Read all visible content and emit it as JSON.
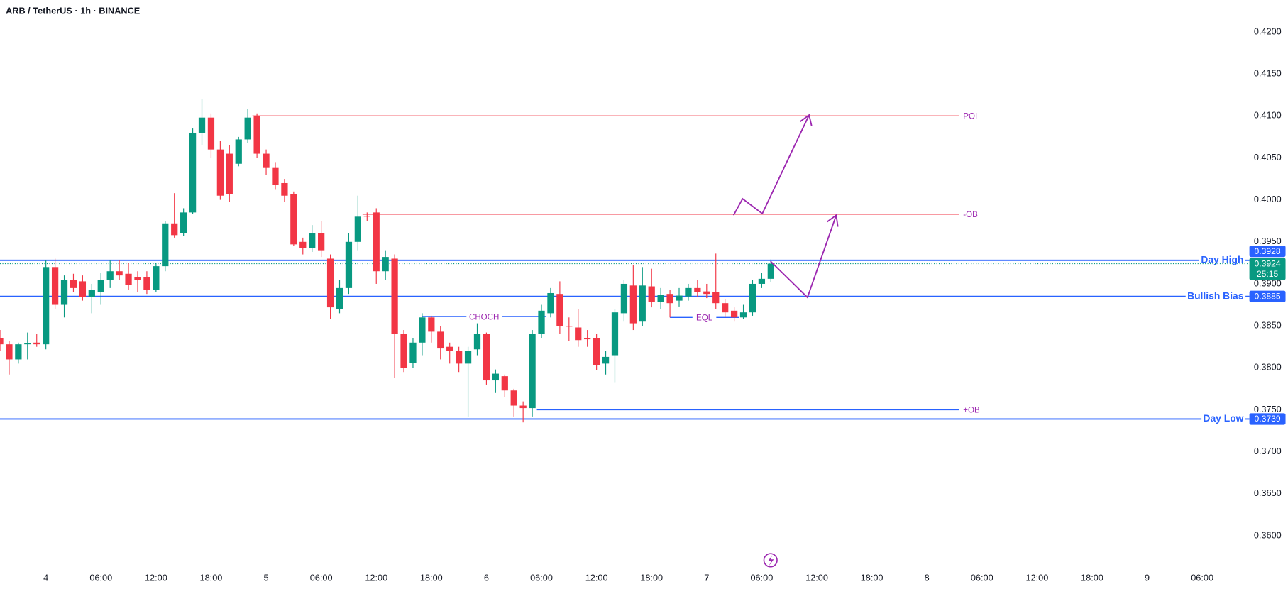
{
  "chart_data": {
    "type": "candlestick",
    "title": "ARB / TetherUS · 1h · BINANCE",
    "x": [
      -5,
      -4,
      -3,
      -2,
      -1,
      0,
      1,
      2,
      3,
      4,
      5,
      6,
      7,
      8,
      9,
      10,
      11,
      12,
      13,
      14,
      15,
      16,
      17,
      18,
      19,
      20,
      21,
      22,
      23,
      24,
      25,
      26,
      27,
      28,
      29,
      30,
      31,
      32,
      33,
      34,
      35,
      36,
      37,
      38,
      39,
      40,
      41,
      42,
      43,
      44,
      45,
      46,
      47,
      48,
      49,
      50,
      51,
      52,
      53,
      54,
      55,
      56,
      57,
      58,
      59,
      60,
      61,
      62,
      63,
      64,
      65,
      66,
      67,
      68,
      69,
      70,
      71,
      72,
      73,
      74,
      75,
      76,
      77,
      78,
      79
    ],
    "open": [
      0.3835,
      0.3828,
      0.381,
      0.3828,
      0.383,
      0.3828,
      0.392,
      0.3875,
      0.3905,
      0.3903,
      0.3884,
      0.389,
      0.3905,
      0.3915,
      0.3912,
      0.3908,
      0.3908,
      0.3893,
      0.3921,
      0.3972,
      0.396,
      0.3985,
      0.408,
      0.4098,
      0.406,
      0.4055,
      0.4043,
      0.4072,
      0.41,
      0.4055,
      0.4038,
      0.402,
      0.4007,
      0.395,
      0.3943,
      0.396,
      0.393,
      0.387,
      0.3895,
      0.395,
      0.3981,
      0.3985,
      0.3915,
      0.393,
      0.384,
      0.3806,
      0.383,
      0.386,
      0.3843,
      0.3825,
      0.382,
      0.3805,
      0.3822,
      0.384,
      0.3785,
      0.379,
      0.3773,
      0.3755,
      0.3752,
      0.384,
      0.3865,
      0.3888,
      0.385,
      0.3848,
      0.3835,
      0.3835,
      0.3805,
      0.3815,
      0.3865,
      0.3898,
      0.3855,
      0.3897,
      0.3878,
      0.3888,
      0.388,
      0.3885,
      0.3895,
      0.3891,
      0.389,
      0.3877,
      0.3868,
      0.386,
      0.3866,
      0.39,
      0.3906
    ],
    "high": [
      0.3845,
      0.3832,
      0.383,
      0.3842,
      0.384,
      0.3928,
      0.393,
      0.391,
      0.3912,
      0.391,
      0.39,
      0.3913,
      0.3928,
      0.3928,
      0.3925,
      0.3915,
      0.3915,
      0.3925,
      0.3975,
      0.4008,
      0.399,
      0.4085,
      0.412,
      0.4103,
      0.407,
      0.4065,
      0.4075,
      0.4108,
      0.4103,
      0.406,
      0.4045,
      0.4025,
      0.401,
      0.3955,
      0.397,
      0.3975,
      0.3935,
      0.3905,
      0.396,
      0.4005,
      0.3985,
      0.399,
      0.394,
      0.3935,
      0.3845,
      0.3835,
      0.3865,
      0.3862,
      0.385,
      0.383,
      0.3825,
      0.3825,
      0.3853,
      0.3842,
      0.3798,
      0.3792,
      0.3775,
      0.376,
      0.3845,
      0.3875,
      0.3895,
      0.3903,
      0.386,
      0.387,
      0.3845,
      0.384,
      0.382,
      0.387,
      0.3905,
      0.3922,
      0.392,
      0.3918,
      0.3895,
      0.3893,
      0.3895,
      0.39,
      0.3905,
      0.39,
      0.3936,
      0.3882,
      0.3872,
      0.3875,
      0.3905,
      0.3913,
      0.3929
    ],
    "low": [
      0.382,
      0.3792,
      0.3805,
      0.381,
      0.3825,
      0.3822,
      0.387,
      0.386,
      0.389,
      0.388,
      0.3865,
      0.3875,
      0.3895,
      0.3905,
      0.3893,
      0.389,
      0.3888,
      0.389,
      0.3915,
      0.3955,
      0.3957,
      0.3983,
      0.4065,
      0.405,
      0.4,
      0.3998,
      0.404,
      0.4068,
      0.405,
      0.403,
      0.4012,
      0.3998,
      0.3945,
      0.3935,
      0.3938,
      0.3932,
      0.3858,
      0.3865,
      0.3888,
      0.394,
      0.3975,
      0.39,
      0.3905,
      0.3788,
      0.3795,
      0.38,
      0.3815,
      0.383,
      0.381,
      0.3805,
      0.3795,
      0.3742,
      0.3815,
      0.378,
      0.377,
      0.3765,
      0.3742,
      0.3735,
      0.3742,
      0.3835,
      0.386,
      0.384,
      0.3832,
      0.3825,
      0.3825,
      0.3797,
      0.3792,
      0.3782,
      0.3855,
      0.3845,
      0.385,
      0.3872,
      0.387,
      0.386,
      0.3873,
      0.388,
      0.3884,
      0.3883,
      0.387,
      0.386,
      0.3855,
      0.3858,
      0.3862,
      0.3895,
      0.3902
    ],
    "close": [
      0.3828,
      0.381,
      0.3828,
      0.3829,
      0.3828,
      0.392,
      0.3875,
      0.3905,
      0.3895,
      0.3884,
      0.3893,
      0.3905,
      0.3915,
      0.391,
      0.3899,
      0.3905,
      0.3893,
      0.3921,
      0.3972,
      0.3958,
      0.3985,
      0.408,
      0.4098,
      0.406,
      0.4005,
      0.4007,
      0.4072,
      0.4098,
      0.4055,
      0.4038,
      0.4018,
      0.4005,
      0.3947,
      0.3943,
      0.396,
      0.394,
      0.3872,
      0.3895,
      0.395,
      0.398,
      0.398,
      0.3915,
      0.3932,
      0.384,
      0.38,
      0.383,
      0.386,
      0.3843,
      0.3823,
      0.382,
      0.3805,
      0.382,
      0.384,
      0.3785,
      0.3793,
      0.3773,
      0.3755,
      0.3752,
      0.384,
      0.3868,
      0.3889,
      0.385,
      0.3849,
      0.3833,
      0.3834,
      0.3803,
      0.3813,
      0.3866,
      0.39,
      0.3853,
      0.3898,
      0.3878,
      0.3887,
      0.3877,
      0.3886,
      0.3895,
      0.389,
      0.3888,
      0.3877,
      0.3866,
      0.386,
      0.3866,
      0.39,
      0.3906,
      0.3924
    ],
    "up_color": "#089981",
    "down_color": "#f23645",
    "xlim": [
      -5,
      130.6
    ],
    "xticks": [
      {
        "value": 0,
        "label": "4"
      },
      {
        "value": 6,
        "label": "06:00"
      },
      {
        "value": 12,
        "label": "12:00"
      },
      {
        "value": 18,
        "label": "18:00"
      },
      {
        "value": 24,
        "label": "5"
      },
      {
        "value": 30,
        "label": "06:00"
      },
      {
        "value": 36,
        "label": "12:00"
      },
      {
        "value": 42,
        "label": "18:00"
      },
      {
        "value": 48,
        "label": "6"
      },
      {
        "value": 54,
        "label": "06:00"
      },
      {
        "value": 60,
        "label": "12:00"
      },
      {
        "value": 66,
        "label": "18:00"
      },
      {
        "value": 72,
        "label": "7"
      },
      {
        "value": 78,
        "label": "06:00"
      },
      {
        "value": 84,
        "label": "12:00"
      },
      {
        "value": 90,
        "label": "18:00"
      },
      {
        "value": 96,
        "label": "8"
      },
      {
        "value": 102,
        "label": "06:00"
      },
      {
        "value": 108,
        "label": "12:00"
      },
      {
        "value": 114,
        "label": "18:00"
      },
      {
        "value": 120,
        "label": "9"
      },
      {
        "value": 126,
        "label": "06:00"
      }
    ],
    "ylim": [
      0.3563,
      0.4238
    ],
    "yticks": [
      {
        "value": 0.36,
        "label": "0.3600"
      },
      {
        "value": 0.365,
        "label": "0.3650"
      },
      {
        "value": 0.37,
        "label": "0.3700"
      },
      {
        "value": 0.375,
        "label": "0.3750"
      },
      {
        "value": 0.38,
        "label": "0.3800"
      },
      {
        "value": 0.385,
        "label": "0.3850"
      },
      {
        "value": 0.39,
        "label": "0.3900"
      },
      {
        "value": 0.395,
        "label": "0.3950"
      },
      {
        "value": 0.4,
        "label": "0.4000"
      },
      {
        "value": 0.405,
        "label": "0.4050"
      },
      {
        "value": 0.41,
        "label": "0.4100"
      },
      {
        "value": 0.415,
        "label": "0.4150"
      },
      {
        "value": 0.42,
        "label": "0.4200"
      }
    ],
    "grid": false,
    "levels": [
      {
        "name": "Day High",
        "value": 0.3928,
        "color": "#2962ff"
      },
      {
        "name": "Bullish Bias",
        "value": 0.3885,
        "color": "#2962ff"
      },
      {
        "name": "Day Low",
        "value": 0.3739,
        "color": "#2962ff"
      }
    ],
    "last_price": {
      "value": 0.3924,
      "countdown": "25:15",
      "color": "#089981"
    },
    "annotations": [
      {
        "label": "POI",
        "value": 0.41,
        "x_range": [
          22.5,
          99.5
        ],
        "line_color": "#f23645",
        "label_pos": "end"
      },
      {
        "label": "-OB",
        "value": 0.3983,
        "x_range": [
          34.5,
          99.5
        ],
        "line_color": "#f23645",
        "label_pos": "end"
      },
      {
        "label": "+OB",
        "value": 0.375,
        "x_range": [
          53.5,
          99.5
        ],
        "line_color": "#2962ff",
        "label_pos": "end"
      },
      {
        "label": "CHOCH",
        "value": 0.3861,
        "x_range": [
          41,
          54.5
        ],
        "line_color": "#2962ff",
        "label_pos": "middle"
      },
      {
        "label": "EQL",
        "value": 0.386,
        "x_range": [
          68,
          75.5
        ],
        "line_color": "#2962ff",
        "label_pos": "middle"
      }
    ]
  }
}
